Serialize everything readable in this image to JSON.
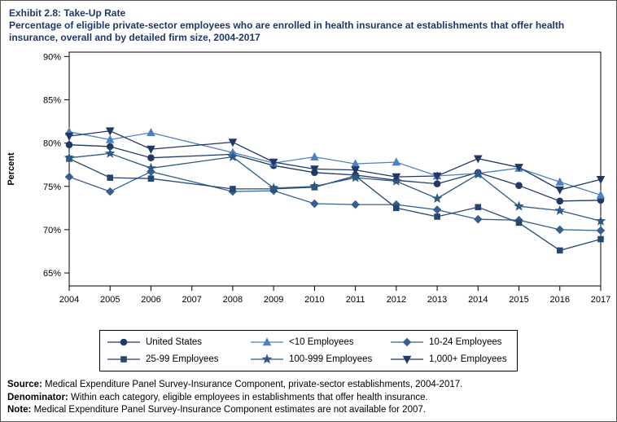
{
  "title": {
    "line1": "Exhibit 2.8: Take-Up Rate",
    "line2": "Percentage of eligible private-sector employees who are enrolled in health insurance at establishments that offer health insurance, overall and by detailed firm size, 2004-2017"
  },
  "chart_data": {
    "type": "line",
    "ylabel": "Percent",
    "ylim": [
      63.5,
      90.5
    ],
    "yticks": [
      65,
      70,
      75,
      80,
      85,
      90
    ],
    "ytick_suffix": "%",
    "grid": false,
    "legend_position": "bottom",
    "x": [
      2004,
      2005,
      2006,
      2007,
      2008,
      2009,
      2010,
      2011,
      2012,
      2013,
      2014,
      2015,
      2016,
      2017
    ],
    "series": [
      {
        "id": "united-states",
        "name": "United States",
        "marker": "circle",
        "color": "#1F3864",
        "values": [
          79.8,
          79.6,
          78.3,
          null,
          78.7,
          77.4,
          76.6,
          76.3,
          75.7,
          75.3,
          76.6,
          75.1,
          73.3,
          73.4
        ]
      },
      {
        "id": "lt10-employees",
        "name": "<10 Employees",
        "marker": "triangle-up",
        "color": "#4E81BD",
        "values": [
          81.3,
          80.4,
          81.2,
          null,
          78.9,
          77.7,
          78.4,
          77.6,
          77.8,
          76.2,
          76.5,
          77.1,
          75.5,
          74.0
        ]
      },
      {
        "id": "10-24-employees",
        "name": "10-24 Employees",
        "marker": "diamond",
        "color": "#38608F",
        "values": [
          76.1,
          74.4,
          76.7,
          null,
          74.4,
          74.5,
          73.0,
          72.9,
          72.9,
          72.3,
          71.2,
          71.1,
          70.0,
          69.9
        ]
      },
      {
        "id": "25-99-employees",
        "name": "25-99 Employees",
        "marker": "square",
        "color": "#24476B",
        "values": [
          78.2,
          76.0,
          75.9,
          null,
          74.7,
          74.7,
          74.9,
          76.2,
          72.5,
          71.5,
          72.6,
          70.8,
          67.6,
          68.9
        ]
      },
      {
        "id": "100-999-employees",
        "name": "100-999 Employees",
        "marker": "star",
        "color": "#2E5984",
        "values": [
          78.3,
          78.8,
          77.1,
          null,
          78.4,
          74.8,
          75.0,
          76.0,
          75.6,
          73.6,
          76.4,
          72.7,
          72.2,
          71.0
        ]
      },
      {
        "id": "1000plus-employees",
        "name": "1,000+ Employees",
        "marker": "triangle-down",
        "color": "#1F3864",
        "values": [
          80.8,
          81.4,
          79.3,
          null,
          80.1,
          77.8,
          77.0,
          76.9,
          76.1,
          76.2,
          78.2,
          77.2,
          74.6,
          75.8
        ]
      }
    ]
  },
  "notes": [
    {
      "label": "Source:",
      "text": "Medical Expenditure Panel Survey-Insurance Component, private-sector establishments, 2004-2017."
    },
    {
      "label": "Denominator:",
      "text": "Within each category, eligible employees in establishments that offer health insurance."
    },
    {
      "label": "Note:",
      "text": "Medical Expenditure Panel Survey-Insurance Component estimates are not available for 2007."
    }
  ]
}
